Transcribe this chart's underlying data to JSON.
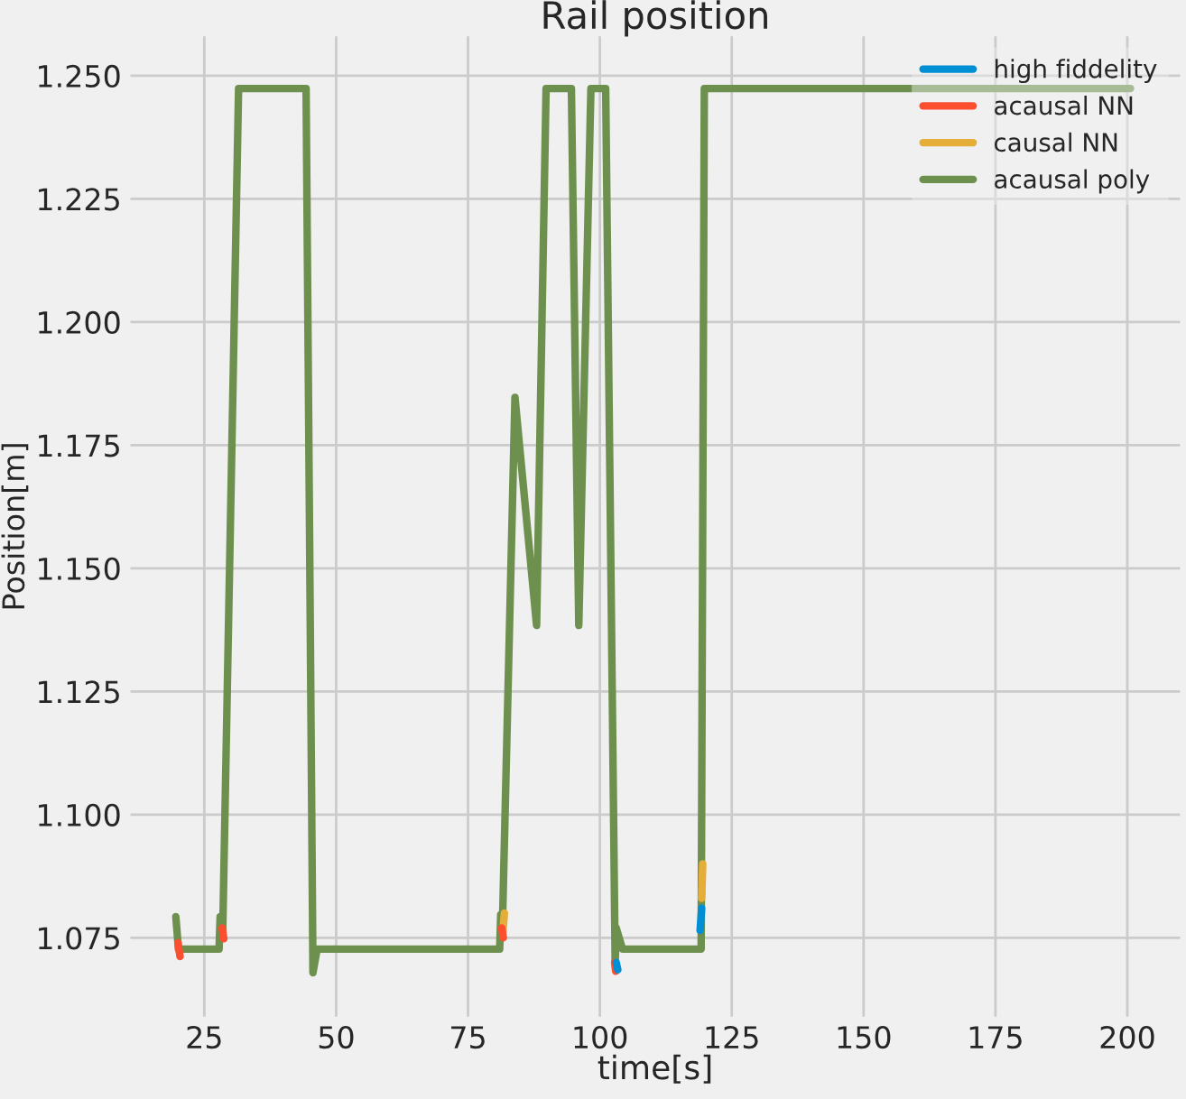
{
  "chart_data": {
    "type": "line",
    "title": "Rail position",
    "xlabel": "time[s]",
    "ylabel": "Position[m]",
    "x": [
      19.6,
      20.1,
      27.8,
      28.0,
      28.5,
      31.5,
      44.3,
      45.6,
      46.4,
      81.0,
      81.2,
      81.5,
      83.9,
      88.0,
      89.8,
      94.6,
      96.0,
      98.3,
      101.1,
      102.9,
      103.1,
      104.3,
      119.2,
      119.8,
      200.6
    ],
    "series": [
      {
        "name": "high fiddelity",
        "color": "#008fd5",
        "x": [
          103.1,
          103.4,
          103.5,
          119.0,
          119.3
        ],
        "values": [
          1.07,
          1.0685,
          null,
          1.0765,
          1.081
        ]
      },
      {
        "name": "acausal NN",
        "color": "#fc4f30",
        "x": [
          20.0,
          20.4,
          20.5,
          28.4,
          28.7,
          28.8,
          81.4,
          81.7,
          81.8,
          102.8,
          103.0
        ],
        "values": [
          1.074,
          1.0712,
          null,
          1.077,
          1.0748,
          null,
          1.077,
          1.075,
          null,
          1.07,
          1.0682
        ]
      },
      {
        "name": "causal NN",
        "color": "#e5ae38",
        "x": [
          81.6,
          81.9,
          82.0,
          119.3,
          119.5
        ],
        "values": [
          1.076,
          1.08,
          null,
          1.083,
          1.09
        ]
      },
      {
        "name": "acausal poly",
        "color": "#6d904f",
        "values": [
          1.0793,
          1.0727,
          1.0727,
          1.0793,
          1.0765,
          1.2474,
          1.2474,
          1.0679,
          1.0727,
          1.0727,
          1.0797,
          1.0765,
          1.1847,
          1.1384,
          1.2474,
          1.2474,
          1.1384,
          1.2474,
          1.2474,
          1.0698,
          1.077,
          1.0727,
          1.0727,
          1.2474,
          1.2474
        ]
      }
    ],
    "xlim": [
      11,
      210
    ],
    "ylim": [
      1.059,
      1.258
    ],
    "xticks": [
      25,
      50,
      75,
      100,
      125,
      150,
      175,
      200
    ],
    "yticks": [
      {
        "value": 1.075,
        "label": "1.075"
      },
      {
        "value": 1.1,
        "label": "1.100"
      },
      {
        "value": 1.125,
        "label": "1.125"
      },
      {
        "value": 1.15,
        "label": "1.150"
      },
      {
        "value": 1.175,
        "label": "1.175"
      },
      {
        "value": 1.2,
        "label": "1.200"
      },
      {
        "value": 1.225,
        "label": "1.225"
      },
      {
        "value": 1.25,
        "label": "1.250"
      }
    ],
    "grid": true,
    "legend": "top right",
    "marker": "none",
    "line_style": "solid"
  }
}
